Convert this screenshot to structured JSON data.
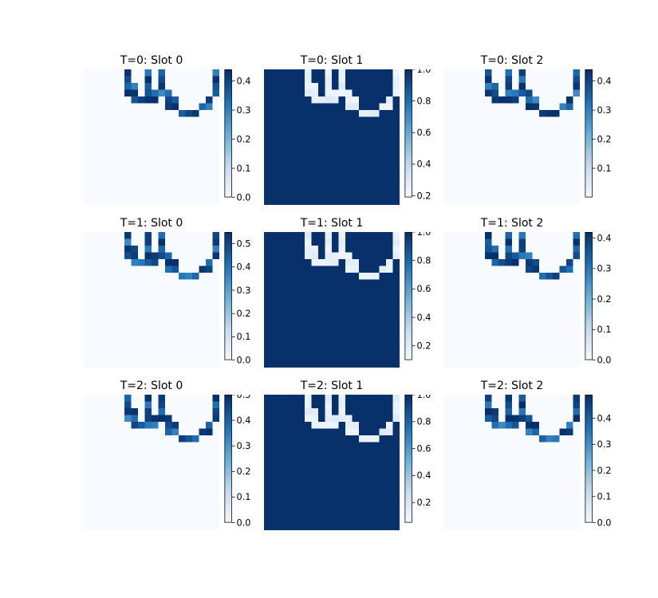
{
  "chart_data": [
    {
      "type": "heatmap",
      "title": "T=0: Slot 0",
      "slot_kind": "object",
      "grid": [
        20,
        20
      ],
      "max_value": 0.44,
      "colorbar_ticks": [
        "0.0",
        "0.1",
        "0.2",
        "0.3",
        "0.4"
      ],
      "tick_values": [
        0,
        0.1,
        0.2,
        0.3,
        0.4
      ],
      "colorbar_range": [
        0,
        0.44
      ],
      "colormap": "Blues"
    },
    {
      "type": "heatmap",
      "title": "T=0: Slot 1",
      "slot_kind": "background",
      "grid": [
        20,
        20
      ],
      "min_value": 0.2,
      "colorbar_ticks": [
        "0.2",
        "0.4",
        "0.6",
        "0.8",
        "1.0"
      ],
      "tick_values": [
        0.2,
        0.4,
        0.6,
        0.8,
        1.0
      ],
      "colorbar_range": [
        0.19,
        1.0
      ],
      "colormap": "Blues"
    },
    {
      "type": "heatmap",
      "title": "T=0: Slot 2",
      "slot_kind": "object",
      "grid": [
        20,
        20
      ],
      "max_value": 0.44,
      "colorbar_ticks": [
        "0.1",
        "0.2",
        "0.3",
        "0.4"
      ],
      "tick_values": [
        0.1,
        0.2,
        0.3,
        0.4
      ],
      "colorbar_range": [
        0.0,
        0.44
      ],
      "colormap": "Blues"
    },
    {
      "type": "heatmap",
      "title": "T=1: Slot 0",
      "slot_kind": "object",
      "grid": [
        20,
        20
      ],
      "max_value": 0.55,
      "colorbar_ticks": [
        "0.0",
        "0.1",
        "0.2",
        "0.3",
        "0.4",
        "0.5"
      ],
      "tick_values": [
        0,
        0.1,
        0.2,
        0.3,
        0.4,
        0.5
      ],
      "colorbar_range": [
        0,
        0.55
      ],
      "colormap": "Blues"
    },
    {
      "type": "heatmap",
      "title": "T=1: Slot 1",
      "slot_kind": "background",
      "grid": [
        20,
        20
      ],
      "min_value": 0.1,
      "colorbar_ticks": [
        "0.2",
        "0.4",
        "0.6",
        "0.8",
        "1.0"
      ],
      "tick_values": [
        0.2,
        0.4,
        0.6,
        0.8,
        1.0
      ],
      "colorbar_range": [
        0.1,
        1.0
      ],
      "colormap": "Blues"
    },
    {
      "type": "heatmap",
      "title": "T=1: Slot 2",
      "slot_kind": "object",
      "grid": [
        20,
        20
      ],
      "max_value": 0.42,
      "colorbar_ticks": [
        "0.0",
        "0.1",
        "0.2",
        "0.3",
        "0.4"
      ],
      "tick_values": [
        0,
        0.1,
        0.2,
        0.3,
        0.4
      ],
      "colorbar_range": [
        0,
        0.42
      ],
      "colormap": "Blues"
    },
    {
      "type": "heatmap",
      "title": "T=2: Slot 0",
      "slot_kind": "object",
      "grid": [
        20,
        20
      ],
      "max_value": 0.5,
      "colorbar_ticks": [
        "0.0",
        "0.1",
        "0.2",
        "0.3",
        "0.4",
        "0.5"
      ],
      "tick_values": [
        0,
        0.1,
        0.2,
        0.3,
        0.4,
        0.5
      ],
      "colorbar_range": [
        0,
        0.5
      ],
      "colormap": "Blues"
    },
    {
      "type": "heatmap",
      "title": "T=2: Slot 1",
      "slot_kind": "background",
      "grid": [
        20,
        20
      ],
      "min_value": 0.05,
      "colorbar_ticks": [
        "0.2",
        "0.4",
        "0.6",
        "0.8",
        "1.0"
      ],
      "tick_values": [
        0.2,
        0.4,
        0.6,
        0.8,
        1.0
      ],
      "colorbar_range": [
        0.05,
        1.0
      ],
      "colormap": "Blues"
    },
    {
      "type": "heatmap",
      "title": "T=2: Slot 2",
      "slot_kind": "object",
      "grid": [
        20,
        20
      ],
      "max_value": 0.49,
      "colorbar_ticks": [
        "0.0",
        "0.1",
        "0.2",
        "0.3",
        "0.4"
      ],
      "tick_values": [
        0,
        0.1,
        0.2,
        0.3,
        0.4
      ],
      "colorbar_range": [
        0,
        0.49
      ],
      "colormap": "Blues"
    }
  ],
  "colors": {
    "low": "#f7fbff",
    "mid": "#6baed6",
    "high": "#08306b"
  }
}
